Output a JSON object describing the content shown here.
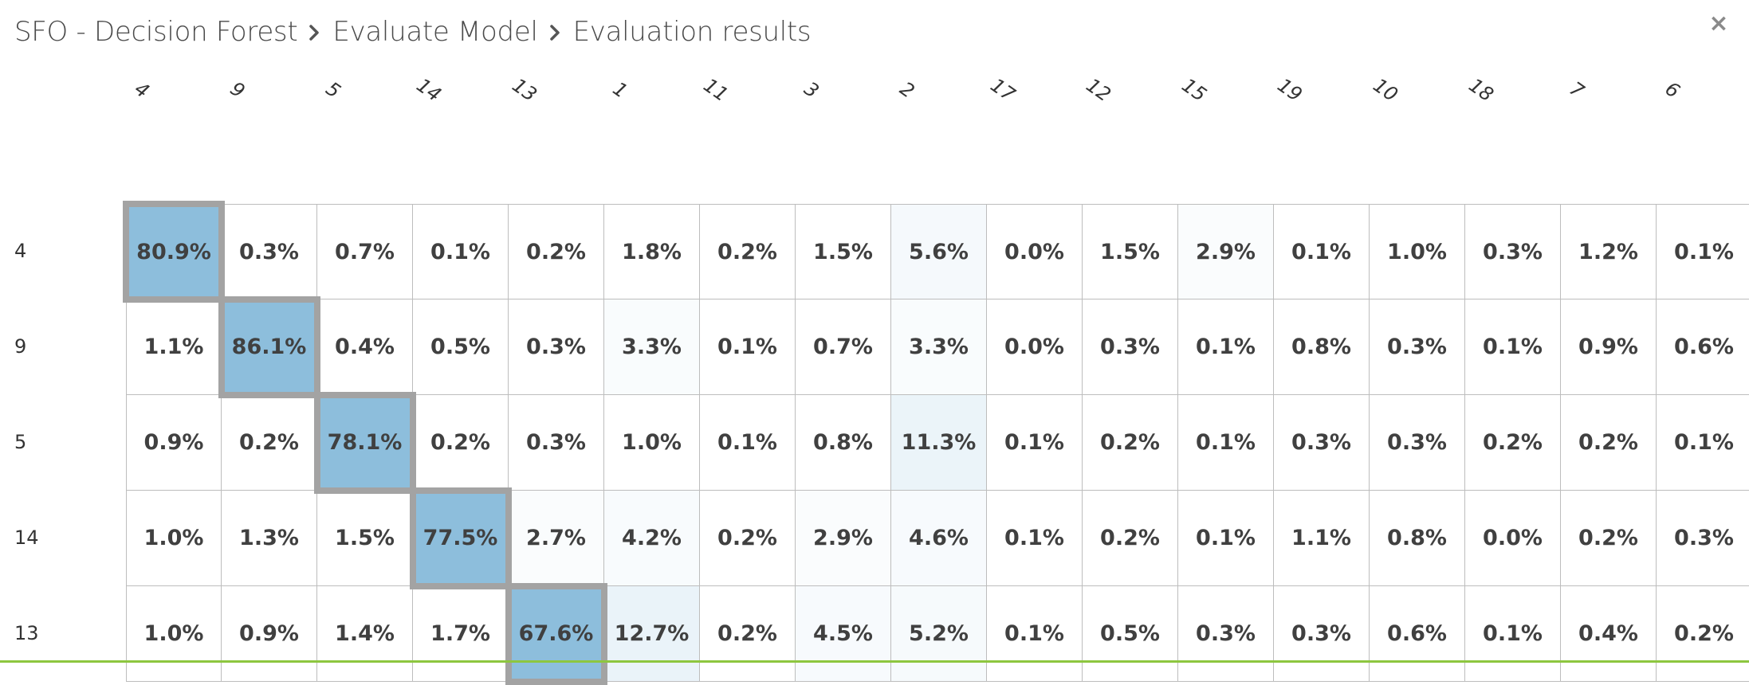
{
  "breadcrumb": {
    "items": [
      "SFO - Decision Forest",
      "Evaluate Model",
      "Evaluation results"
    ]
  },
  "close_label": "×",
  "colors": {
    "diagonal_fill": "#8dbedc",
    "diagonal_border": "#a3a3a3",
    "grid_border": "#bdbdbd",
    "text": "#404040",
    "bottom_bar": "#8dc63f"
  },
  "matrix": {
    "column_labels": [
      "4",
      "9",
      "5",
      "14",
      "13",
      "1",
      "11",
      "3",
      "2",
      "17",
      "12",
      "15",
      "19",
      "10",
      "18",
      "7",
      "6"
    ],
    "row_labels": [
      "4",
      "9",
      "5",
      "14",
      "13"
    ],
    "values": [
      [
        "80.9%",
        "0.3%",
        "0.7%",
        "0.1%",
        "0.2%",
        "1.8%",
        "0.2%",
        "1.5%",
        "5.6%",
        "0.0%",
        "1.5%",
        "2.9%",
        "0.1%",
        "1.0%",
        "0.3%",
        "1.2%",
        "0.1%"
      ],
      [
        "1.1%",
        "86.1%",
        "0.4%",
        "0.5%",
        "0.3%",
        "3.3%",
        "0.1%",
        "0.7%",
        "3.3%",
        "0.0%",
        "0.3%",
        "0.1%",
        "0.8%",
        "0.3%",
        "0.1%",
        "0.9%",
        "0.6%"
      ],
      [
        "0.9%",
        "0.2%",
        "78.1%",
        "0.2%",
        "0.3%",
        "1.0%",
        "0.1%",
        "0.8%",
        "11.3%",
        "0.1%",
        "0.2%",
        "0.1%",
        "0.3%",
        "0.3%",
        "0.2%",
        "0.2%",
        "0.1%"
      ],
      [
        "1.0%",
        "1.3%",
        "1.5%",
        "77.5%",
        "2.7%",
        "4.2%",
        "0.2%",
        "2.9%",
        "4.6%",
        "0.1%",
        "0.2%",
        "0.1%",
        "1.1%",
        "0.8%",
        "0.0%",
        "0.2%",
        "0.3%"
      ],
      [
        "1.0%",
        "0.9%",
        "1.4%",
        "1.7%",
        "67.6%",
        "12.7%",
        "0.2%",
        "4.5%",
        "5.2%",
        "0.1%",
        "0.5%",
        "0.3%",
        "0.3%",
        "0.6%",
        "0.1%",
        "0.4%",
        "0.2%"
      ]
    ]
  }
}
